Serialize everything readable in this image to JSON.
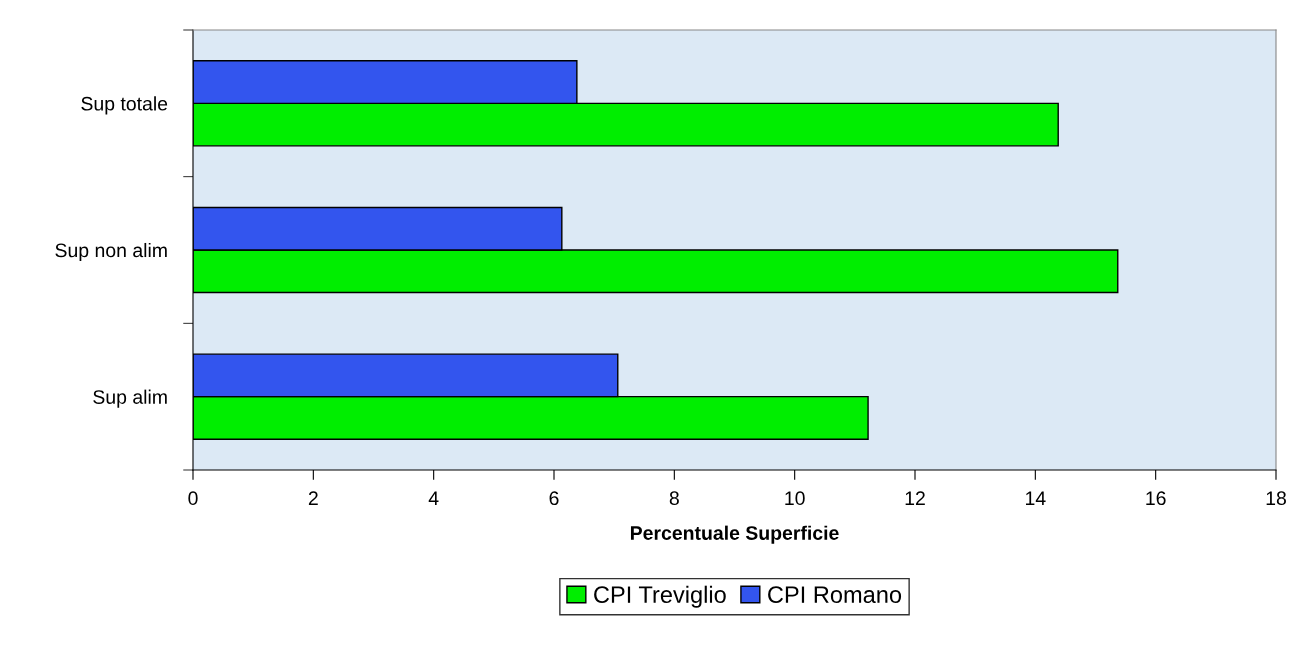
{
  "chart_data": {
    "type": "bar",
    "orientation": "horizontal",
    "xlabel": "Percentuale Superficie",
    "categories": [
      "Sup totale",
      "Sup non alim",
      "Sup alim"
    ],
    "series": [
      {
        "name": "CPI Treviglio",
        "color": "#00ee00",
        "values": [
          14.38,
          15.37,
          11.22
        ]
      },
      {
        "name": "CPI Romano",
        "color": "#3355ee",
        "values": [
          6.38,
          6.13,
          7.06
        ]
      }
    ],
    "xlim": [
      0,
      18
    ],
    "xticks": [
      0,
      2,
      4,
      6,
      8,
      10,
      12,
      14,
      16,
      18
    ],
    "grid": false,
    "legend": "bottom"
  }
}
